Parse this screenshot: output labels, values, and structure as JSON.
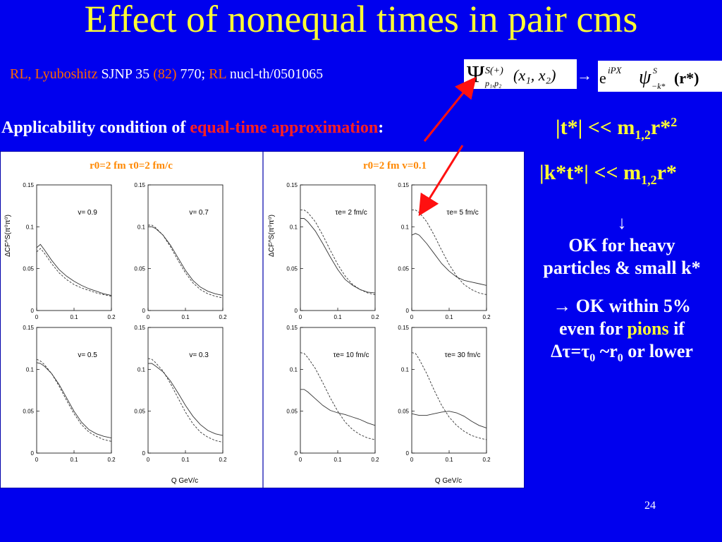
{
  "slide": {
    "title": "Effect of nonequal times in pair cms",
    "ref": {
      "authors": "RL, Lyuboshitz",
      "journal": " SJNP 35 ",
      "year": "(82)",
      "pages": " 770; ",
      "rl": "RL",
      "preprint": " nucl-th/0501065"
    },
    "formula_arrow": "→",
    "applicability": {
      "prefix": "Applicability condition of ",
      "highlight": "equal-time approximation",
      "colon": ":"
    },
    "cond1": {
      "main": "|t*| << m",
      "sub": "1,2",
      "tail": "r*",
      "sup": "2"
    },
    "cond2": {
      "main": "|k*t*| << m",
      "sub": "1,2",
      "tail": "r*"
    },
    "right": {
      "down_arrow": "↓",
      "line1": "OK for heavy",
      "line2": "particles & small k*",
      "line3": "→ OK within 5%",
      "line4_a": "even for ",
      "line4_b": "pions",
      "line4_c": " if",
      "line5_a": "Δτ=τ",
      "line5_sub1": "0",
      "line5_b": " ~r",
      "line5_sub2": "0",
      "line5_c": " or lower"
    },
    "page_number": "24",
    "colors": {
      "background": "#0000ee",
      "title": "#ffff33",
      "highlight": "#ff2020",
      "accent": "#ff6600"
    }
  },
  "chart_data": [
    {
      "type": "line",
      "title": "r0=2 fm  τ0=2 fm/c",
      "ylabel": "ΔCF^S(π⁰π⁰)",
      "xlabel": "Q  GeV/c",
      "xlim": [
        0,
        0.2
      ],
      "ylim": [
        0,
        0.15
      ],
      "x": [
        0,
        0.01,
        0.02,
        0.04,
        0.06,
        0.08,
        0.1,
        0.12,
        0.14,
        0.16,
        0.18,
        0.2
      ],
      "panels": [
        {
          "label": "v= 0.9",
          "series": [
            {
              "style": "solid",
              "values": [
                0.075,
                0.079,
                0.073,
                0.06,
                0.049,
                0.041,
                0.035,
                0.03,
                0.026,
                0.023,
                0.02,
                0.018
              ]
            },
            {
              "style": "dashed",
              "values": [
                0.07,
                0.074,
                0.069,
                0.056,
                0.045,
                0.037,
                0.031,
                0.027,
                0.024,
                0.021,
                0.019,
                0.017
              ]
            }
          ]
        },
        {
          "label": "v= 0.7",
          "series": [
            {
              "style": "solid",
              "values": [
                0.1,
                0.1,
                0.098,
                0.09,
                0.078,
                0.063,
                0.048,
                0.036,
                0.028,
                0.023,
                0.02,
                0.018
              ]
            },
            {
              "style": "dashed",
              "values": [
                0.102,
                0.102,
                0.099,
                0.09,
                0.076,
                0.06,
                0.045,
                0.033,
                0.025,
                0.02,
                0.017,
                0.015
              ]
            }
          ]
        },
        {
          "label": "v= 0.5",
          "series": [
            {
              "style": "solid",
              "values": [
                0.108,
                0.107,
                0.104,
                0.095,
                0.082,
                0.066,
                0.05,
                0.037,
                0.028,
                0.023,
                0.02,
                0.018
              ]
            },
            {
              "style": "dashed",
              "values": [
                0.112,
                0.11,
                0.106,
                0.095,
                0.08,
                0.063,
                0.047,
                0.034,
                0.025,
                0.02,
                0.016,
                0.014
              ]
            }
          ]
        },
        {
          "label": "v= 0.3",
          "series": [
            {
              "style": "solid",
              "values": [
                0.107,
                0.107,
                0.104,
                0.097,
                0.086,
                0.072,
                0.057,
                0.044,
                0.034,
                0.027,
                0.023,
                0.021
              ]
            },
            {
              "style": "dashed",
              "values": [
                0.113,
                0.112,
                0.108,
                0.098,
                0.083,
                0.066,
                0.049,
                0.035,
                0.025,
                0.019,
                0.015,
                0.013
              ]
            }
          ]
        }
      ]
    },
    {
      "type": "line",
      "title": "r0=2 fm  v=0.1",
      "ylabel": "ΔCF^S(π⁰π⁰)",
      "xlabel": "Q  GeV/c",
      "xlim": [
        0,
        0.2
      ],
      "ylim": [
        0,
        0.15
      ],
      "x": [
        0,
        0.01,
        0.02,
        0.04,
        0.06,
        0.08,
        0.1,
        0.12,
        0.14,
        0.16,
        0.18,
        0.2
      ],
      "panels": [
        {
          "label": "τe= 2 fm/c",
          "series": [
            {
              "style": "solid",
              "values": [
                0.11,
                0.11,
                0.106,
                0.095,
                0.08,
                0.064,
                0.049,
                0.037,
                0.03,
                0.025,
                0.022,
                0.021
              ]
            },
            {
              "style": "dashed",
              "values": [
                0.12,
                0.12,
                0.117,
                0.106,
                0.09,
                0.072,
                0.055,
                0.041,
                0.031,
                0.025,
                0.021,
                0.019
              ]
            }
          ]
        },
        {
          "label": "τe= 5 fm/c",
          "series": [
            {
              "style": "solid",
              "values": [
                0.09,
                0.092,
                0.09,
                0.08,
                0.068,
                0.056,
                0.047,
                0.04,
                0.036,
                0.034,
                0.032,
                0.03
              ]
            },
            {
              "style": "dashed",
              "values": [
                0.12,
                0.12,
                0.117,
                0.106,
                0.09,
                0.072,
                0.055,
                0.041,
                0.031,
                0.025,
                0.021,
                0.019
              ]
            }
          ]
        },
        {
          "label": "τe= 10 fm/c",
          "series": [
            {
              "style": "solid",
              "values": [
                0.076,
                0.076,
                0.073,
                0.065,
                0.057,
                0.051,
                0.048,
                0.046,
                0.043,
                0.04,
                0.036,
                0.033
              ]
            },
            {
              "style": "dashed",
              "values": [
                0.12,
                0.119,
                0.114,
                0.101,
                0.084,
                0.066,
                0.05,
                0.037,
                0.028,
                0.022,
                0.018,
                0.016
              ]
            }
          ]
        },
        {
          "label": "τe= 30 fm/c",
          "series": [
            {
              "style": "solid",
              "values": [
                0.047,
                0.046,
                0.045,
                0.045,
                0.047,
                0.049,
                0.05,
                0.048,
                0.044,
                0.038,
                0.033,
                0.03
              ]
            },
            {
              "style": "dashed",
              "values": [
                0.12,
                0.119,
                0.112,
                0.095,
                0.075,
                0.057,
                0.043,
                0.033,
                0.026,
                0.021,
                0.018,
                0.016
              ]
            }
          ]
        }
      ]
    }
  ]
}
